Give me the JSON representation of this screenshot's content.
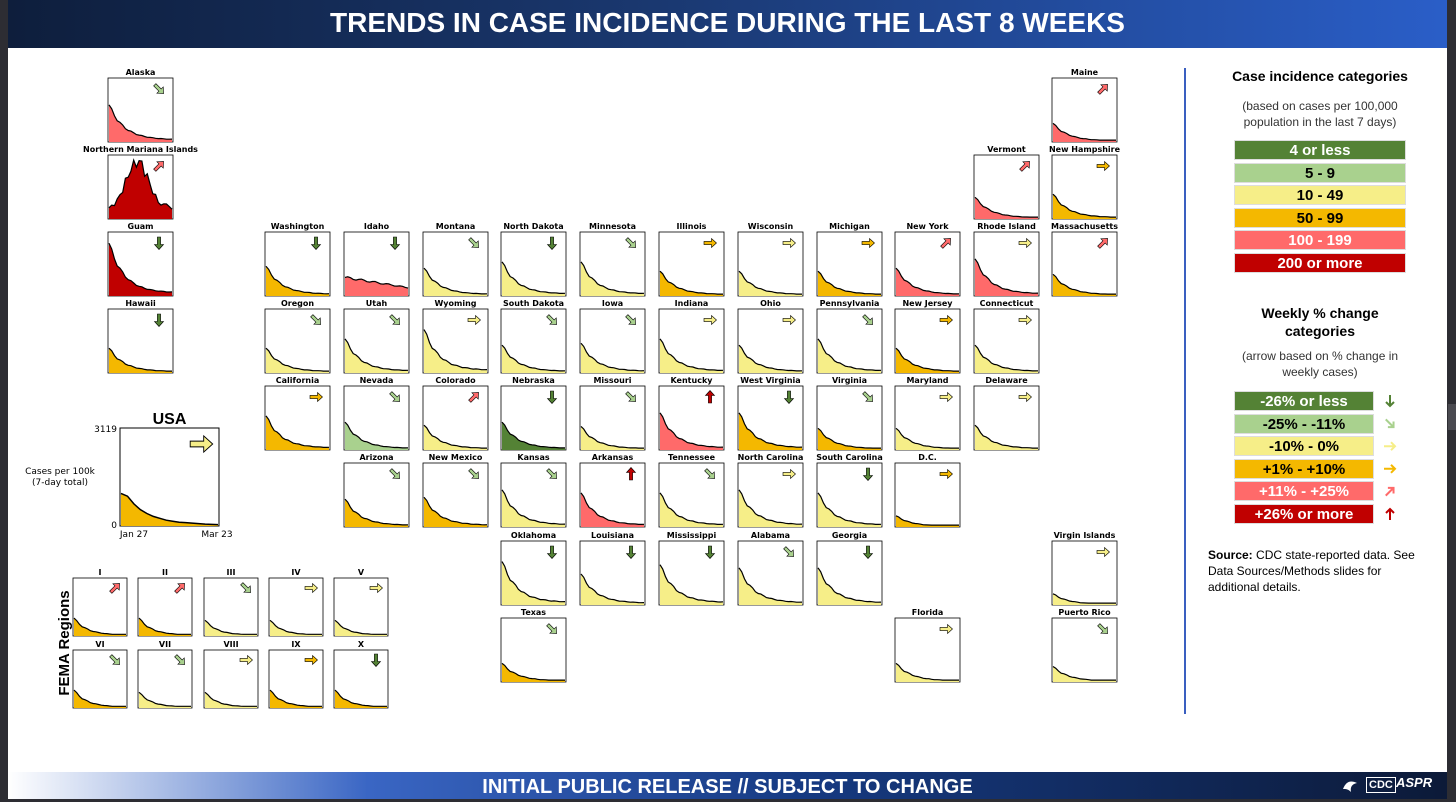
{
  "title": "TRENDS IN CASE INCIDENCE DURING THE LAST 8 WEEKS",
  "footer": "INITIAL PUBLIC RELEASE // SUBJECT TO CHANGE",
  "logos": {
    "cdc": "CDC",
    "aspr": "ASPR"
  },
  "colors": {
    "cat0": "#548235",
    "cat1": "#a9d18e",
    "cat2": "#f6ee88",
    "cat3": "#f4b800",
    "cat4": "#ff6a6a",
    "cat5": "#c00000"
  },
  "legend": {
    "incidence_title": "Case incidence categories",
    "incidence_sub1": "(based on cases per 100,000",
    "incidence_sub2": "population in the last 7 days)",
    "incidence": [
      "4 or less",
      "5 - 9",
      "10 - 49",
      "50 - 99",
      "100 - 199",
      "200 or more"
    ],
    "change_title1": "Weekly % change",
    "change_title2": "categories",
    "change_sub1": "(arrow based on % change in",
    "change_sub2": "weekly cases)",
    "change": [
      "-26% or less",
      "-25% - -11%",
      "-10% - 0%",
      "+1% - +10%",
      "+11% - +25%",
      "+26% or more"
    ],
    "change_arrows": [
      "down",
      "down-right",
      "right",
      "right",
      "up-right",
      "up"
    ],
    "source_bold": "Source:",
    "source_text": " CDC state-reported data. See Data Sources/Methods slides for additional details."
  },
  "usa": {
    "label": "USA",
    "ymax_label": "3119",
    "ymin_label": "0",
    "x_start": "Jan 27",
    "x_end": "Mar 23",
    "ylabel1": "Cases per 100k",
    "ylabel2": "(7-day total)",
    "cat": 3,
    "arrow": "right",
    "values": [
      0.34,
      0.31,
      0.23,
      0.17,
      0.13,
      0.1,
      0.08,
      0.06,
      0.05,
      0.04,
      0.035,
      0.03,
      0.025,
      0.02,
      0.017,
      0.015
    ]
  },
  "fema": {
    "label": "FEMA Regions",
    "regions": [
      {
        "name": "I",
        "cat": 3,
        "arrow": "up-right"
      },
      {
        "name": "II",
        "cat": 3,
        "arrow": "up-right"
      },
      {
        "name": "III",
        "cat": 2,
        "arrow": "down-right"
      },
      {
        "name": "IV",
        "cat": 2,
        "arrow": "right"
      },
      {
        "name": "V",
        "cat": 2,
        "arrow": "right"
      },
      {
        "name": "VI",
        "cat": 3,
        "arrow": "down-right"
      },
      {
        "name": "VII",
        "cat": 2,
        "arrow": "down-right"
      },
      {
        "name": "VIII",
        "cat": 2,
        "arrow": "right"
      },
      {
        "name": "IX",
        "cat": 3,
        "arrow": "right"
      },
      {
        "name": "X",
        "cat": 3,
        "arrow": "down"
      }
    ]
  },
  "chart_data": {
    "type": "area",
    "title": "TRENDS IN CASE INCIDENCE DURING THE LAST 8 WEEKS",
    "x_range": [
      "Jan 27",
      "Mar 23"
    ],
    "tiles": [
      {
        "name": "Alaska",
        "cat": 4,
        "arrow": "down-right",
        "peak": 0.6
      },
      {
        "name": "Northern Mariana Islands",
        "cat": 5,
        "arrow": "up-right",
        "peak": 0.92,
        "shape": "hump"
      },
      {
        "name": "Guam",
        "cat": 5,
        "arrow": "down",
        "peak": 0.85
      },
      {
        "name": "Hawaii",
        "cat": 3,
        "arrow": "down",
        "peak": 0.4
      },
      {
        "name": "Maine",
        "cat": 4,
        "arrow": "up-right",
        "peak": 0.3
      },
      {
        "name": "Vermont",
        "cat": 4,
        "arrow": "up-right",
        "peak": 0.35
      },
      {
        "name": "New Hampshire",
        "cat": 3,
        "arrow": "right",
        "peak": 0.4
      },
      {
        "name": "Washington",
        "cat": 3,
        "arrow": "down",
        "peak": 0.48
      },
      {
        "name": "Idaho",
        "cat": 4,
        "arrow": "down",
        "peak": 0.3,
        "shape": "flat"
      },
      {
        "name": "Montana",
        "cat": 2,
        "arrow": "down-right",
        "peak": 0.45
      },
      {
        "name": "North Dakota",
        "cat": 2,
        "arrow": "down",
        "peak": 0.55
      },
      {
        "name": "Minnesota",
        "cat": 2,
        "arrow": "down-right",
        "peak": 0.55
      },
      {
        "name": "Illinois",
        "cat": 3,
        "arrow": "right",
        "peak": 0.4
      },
      {
        "name": "Wisconsin",
        "cat": 2,
        "arrow": "right",
        "peak": 0.4
      },
      {
        "name": "Michigan",
        "cat": 3,
        "arrow": "right",
        "peak": 0.4
      },
      {
        "name": "New York",
        "cat": 4,
        "arrow": "up-right",
        "peak": 0.45
      },
      {
        "name": "Rhode Island",
        "cat": 4,
        "arrow": "right",
        "peak": 0.6
      },
      {
        "name": "Massachusetts",
        "cat": 3,
        "arrow": "up-right",
        "peak": 0.35
      },
      {
        "name": "Oregon",
        "cat": 2,
        "arrow": "down-right",
        "peak": 0.4
      },
      {
        "name": "Utah",
        "cat": 2,
        "arrow": "down-right",
        "peak": 0.55
      },
      {
        "name": "Wyoming",
        "cat": 2,
        "arrow": "right",
        "peak": 0.7
      },
      {
        "name": "South Dakota",
        "cat": 2,
        "arrow": "down-right",
        "peak": 0.45
      },
      {
        "name": "Iowa",
        "cat": 2,
        "arrow": "down-right",
        "peak": 0.48
      },
      {
        "name": "Indiana",
        "cat": 2,
        "arrow": "right",
        "peak": 0.55
      },
      {
        "name": "Ohio",
        "cat": 2,
        "arrow": "right",
        "peak": 0.45
      },
      {
        "name": "Pennsylvania",
        "cat": 2,
        "arrow": "down-right",
        "peak": 0.55
      },
      {
        "name": "New Jersey",
        "cat": 3,
        "arrow": "right",
        "peak": 0.4
      },
      {
        "name": "Connecticut",
        "cat": 2,
        "arrow": "right",
        "peak": 0.45
      },
      {
        "name": "California",
        "cat": 3,
        "arrow": "right",
        "peak": 0.55
      },
      {
        "name": "Nevada",
        "cat": 1,
        "arrow": "down-right",
        "peak": 0.45
      },
      {
        "name": "Colorado",
        "cat": 2,
        "arrow": "up-right",
        "peak": 0.4
      },
      {
        "name": "Nebraska",
        "cat": 0,
        "arrow": "down",
        "peak": 0.45
      },
      {
        "name": "Missouri",
        "cat": 2,
        "arrow": "down-right",
        "peak": 0.38
      },
      {
        "name": "Kentucky",
        "cat": 4,
        "arrow": "up",
        "peak": 0.6
      },
      {
        "name": "West Virginia",
        "cat": 3,
        "arrow": "down",
        "peak": 0.6
      },
      {
        "name": "Virginia",
        "cat": 3,
        "arrow": "down-right",
        "peak": 0.35
      },
      {
        "name": "Maryland",
        "cat": 2,
        "arrow": "right",
        "peak": 0.35
      },
      {
        "name": "Delaware",
        "cat": 2,
        "arrow": "right",
        "peak": 0.4
      },
      {
        "name": "Arizona",
        "cat": 3,
        "arrow": "down-right",
        "peak": 0.45
      },
      {
        "name": "New Mexico",
        "cat": 3,
        "arrow": "down-right",
        "peak": 0.48
      },
      {
        "name": "Kansas",
        "cat": 2,
        "arrow": "down-right",
        "peak": 0.6
      },
      {
        "name": "Arkansas",
        "cat": 4,
        "arrow": "up",
        "peak": 0.55
      },
      {
        "name": "Tennessee",
        "cat": 2,
        "arrow": "down-right",
        "peak": 0.55
      },
      {
        "name": "North Carolina",
        "cat": 2,
        "arrow": "right",
        "peak": 0.6
      },
      {
        "name": "South Carolina",
        "cat": 2,
        "arrow": "down",
        "peak": 0.55
      },
      {
        "name": "D.C.",
        "cat": 3,
        "arrow": "right",
        "peak": 0.18
      },
      {
        "name": "Oklahoma",
        "cat": 2,
        "arrow": "down",
        "peak": 0.7
      },
      {
        "name": "Louisiana",
        "cat": 2,
        "arrow": "down",
        "peak": 0.5
      },
      {
        "name": "Mississippi",
        "cat": 2,
        "arrow": "down",
        "peak": 0.65
      },
      {
        "name": "Alabama",
        "cat": 2,
        "arrow": "down-right",
        "peak": 0.6
      },
      {
        "name": "Georgia",
        "cat": 2,
        "arrow": "down",
        "peak": 0.6
      },
      {
        "name": "Virgin Islands",
        "cat": 2,
        "arrow": "right",
        "peak": 0.18
      },
      {
        "name": "Texas",
        "cat": 3,
        "arrow": "down-right",
        "peak": 0.3
      },
      {
        "name": "Florida",
        "cat": 2,
        "arrow": "right",
        "peak": 0.3
      },
      {
        "name": "Puerto Rico",
        "cat": 2,
        "arrow": "down-right",
        "peak": 0.25
      }
    ]
  }
}
